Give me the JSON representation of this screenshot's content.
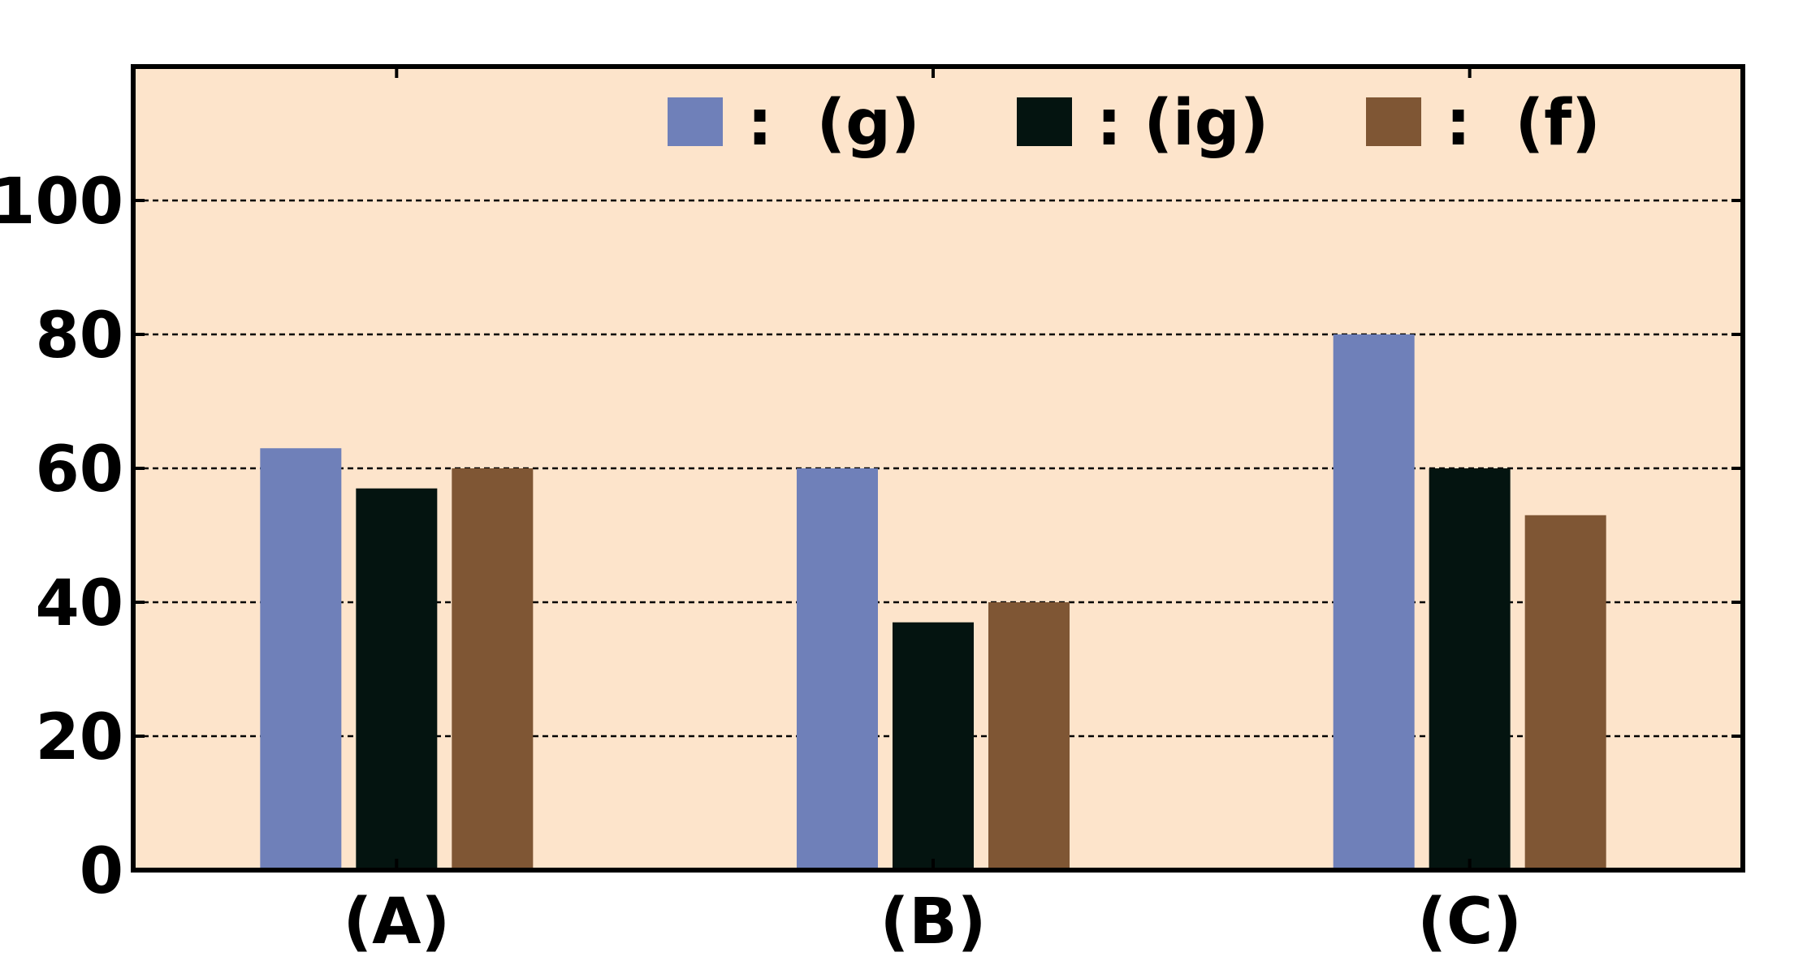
{
  "chart_data": {
    "type": "bar",
    "title": "",
    "xlabel": "",
    "ylabel": "",
    "categories": [
      "(A)",
      "(B)",
      "(C)"
    ],
    "series": [
      {
        "name": ":  (g)",
        "color": "#6f80b9",
        "values": [
          63,
          60,
          80
        ]
      },
      {
        "name": ": (ig)",
        "color": "#041410",
        "values": [
          57,
          37,
          60
        ]
      },
      {
        "name": ":  (f)",
        "color": "#7f5634",
        "values": [
          60,
          40,
          53
        ]
      }
    ],
    "ylim": [
      0,
      120
    ],
    "yticks": [
      "0",
      "20",
      "40",
      "60",
      "80",
      "100"
    ],
    "grid": true,
    "legend_position": "top-right",
    "background_color": "#fde4cb"
  }
}
